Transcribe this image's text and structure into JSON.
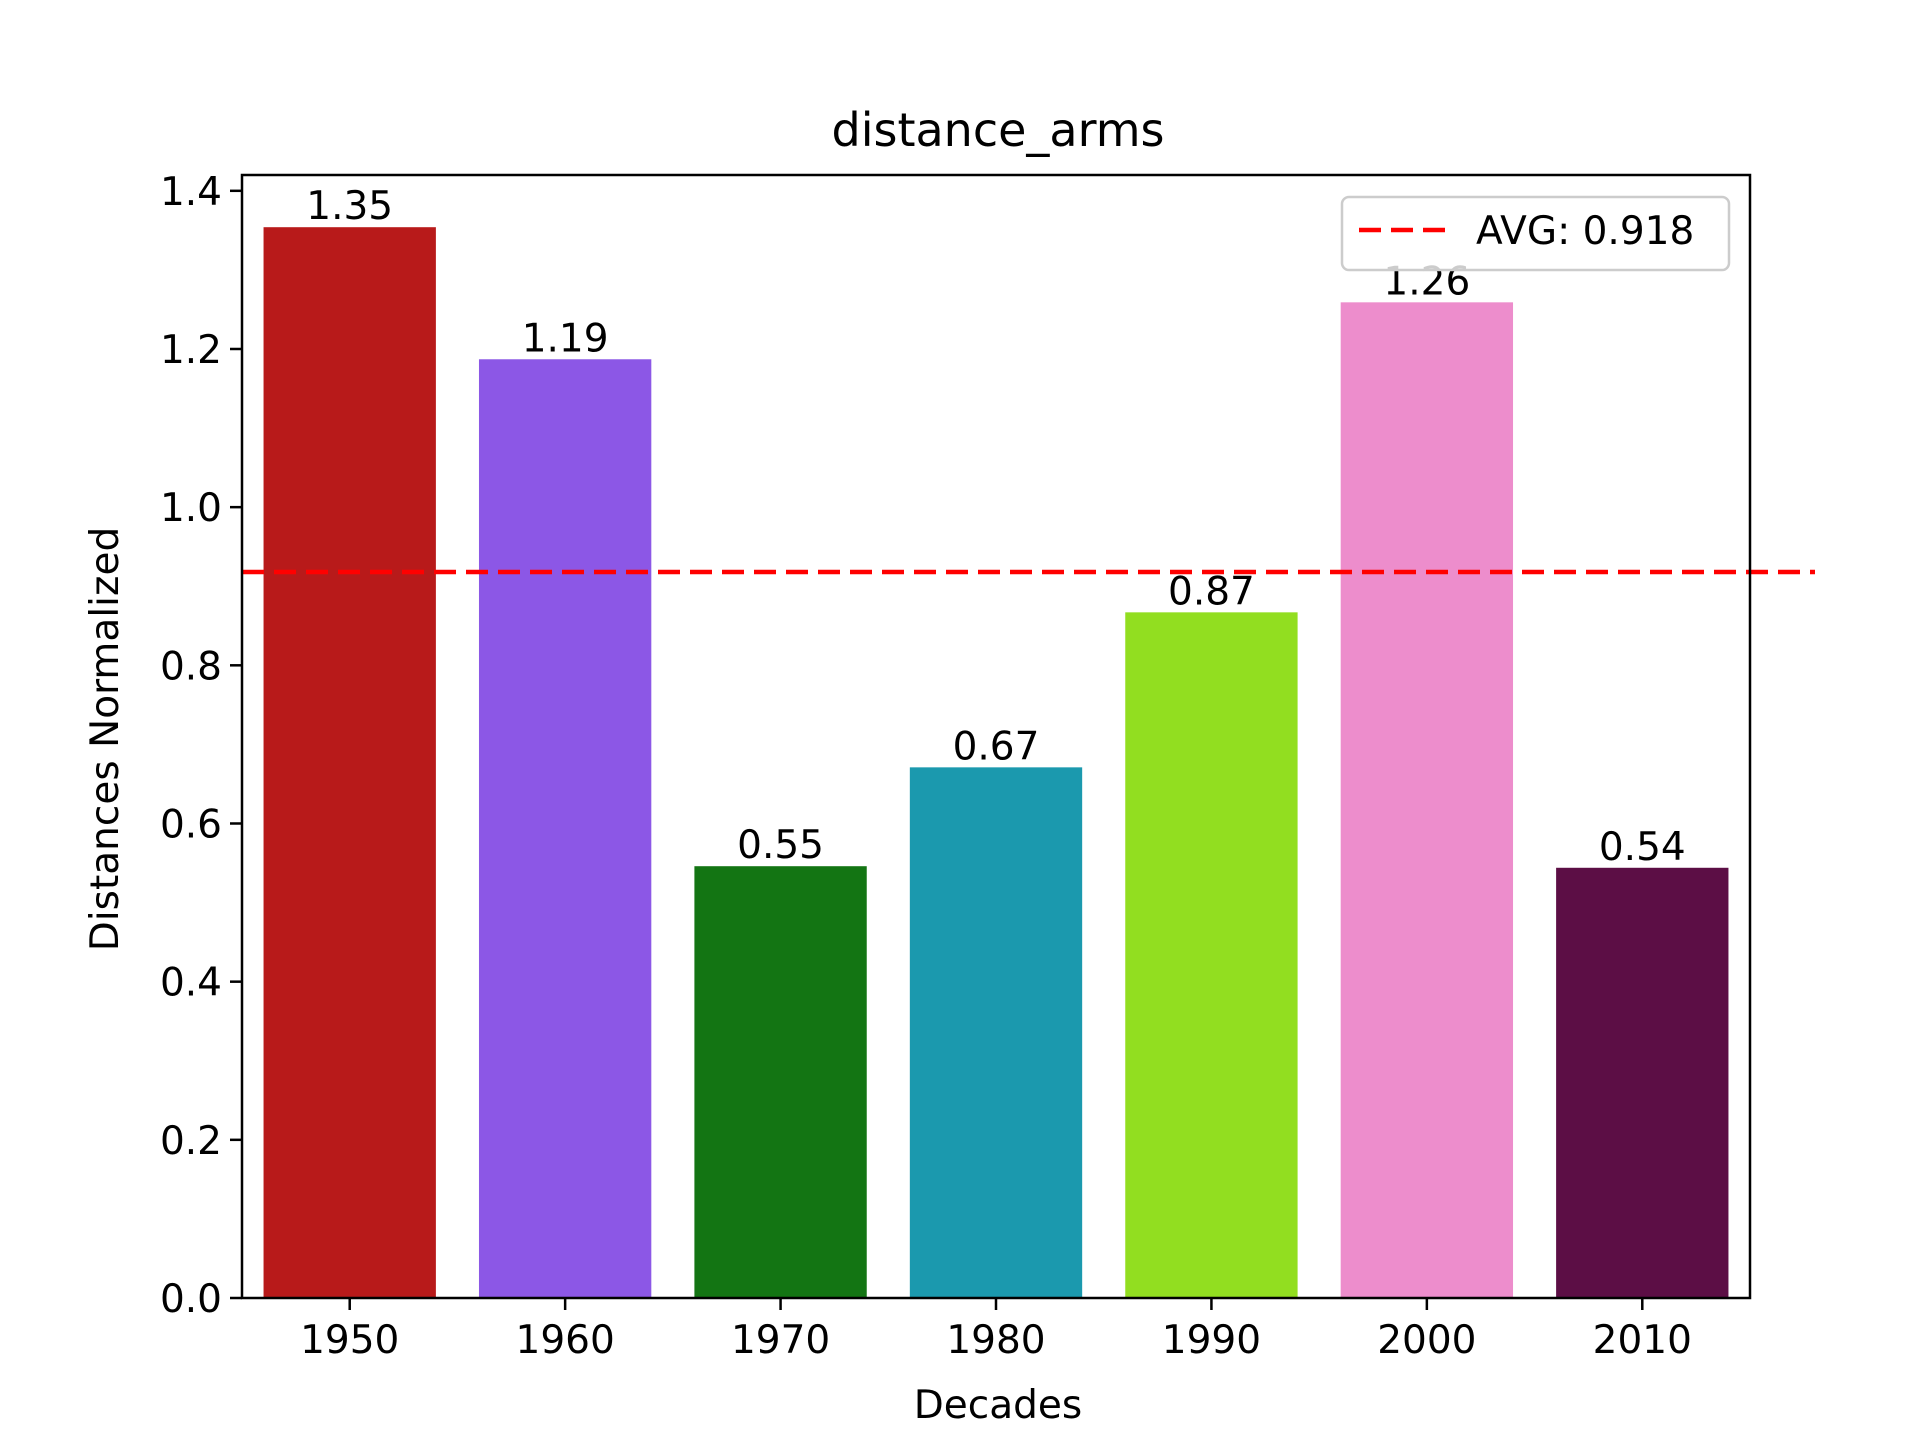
{
  "chart_data": {
    "type": "bar",
    "title": "distance_arms",
    "xlabel": "Decades",
    "ylabel": "Distances Normalized",
    "categories": [
      "1950",
      "1960",
      "1970",
      "1980",
      "1990",
      "2000",
      "2010"
    ],
    "values": [
      1.354,
      1.187,
      0.546,
      0.671,
      0.867,
      1.259,
      0.544
    ],
    "data_labels": [
      "1.35",
      "1.19",
      "0.55",
      "0.67",
      "0.87",
      "1.26",
      "0.54"
    ],
    "colors": [
      "#b81a1a",
      "#8c57e6",
      "#137513",
      "#1b99ae",
      "#92de20",
      "#ed8dcc",
      "#5c0e45"
    ],
    "ylim": [
      0,
      1.42
    ],
    "yticks": [
      0.0,
      0.2,
      0.4,
      0.6,
      0.8,
      1.0,
      1.2,
      1.4
    ],
    "ytick_labels": [
      "0.0",
      "0.2",
      "0.4",
      "0.6",
      "0.8",
      "1.0",
      "1.2",
      "1.4"
    ],
    "average": {
      "value": 0.918,
      "label": "AVG: 0.918",
      "color": "#ff0000",
      "style": "dashed"
    },
    "legend": {
      "placement": "top-right",
      "entries": [
        "AVG: 0.918"
      ]
    },
    "grid": false
  }
}
